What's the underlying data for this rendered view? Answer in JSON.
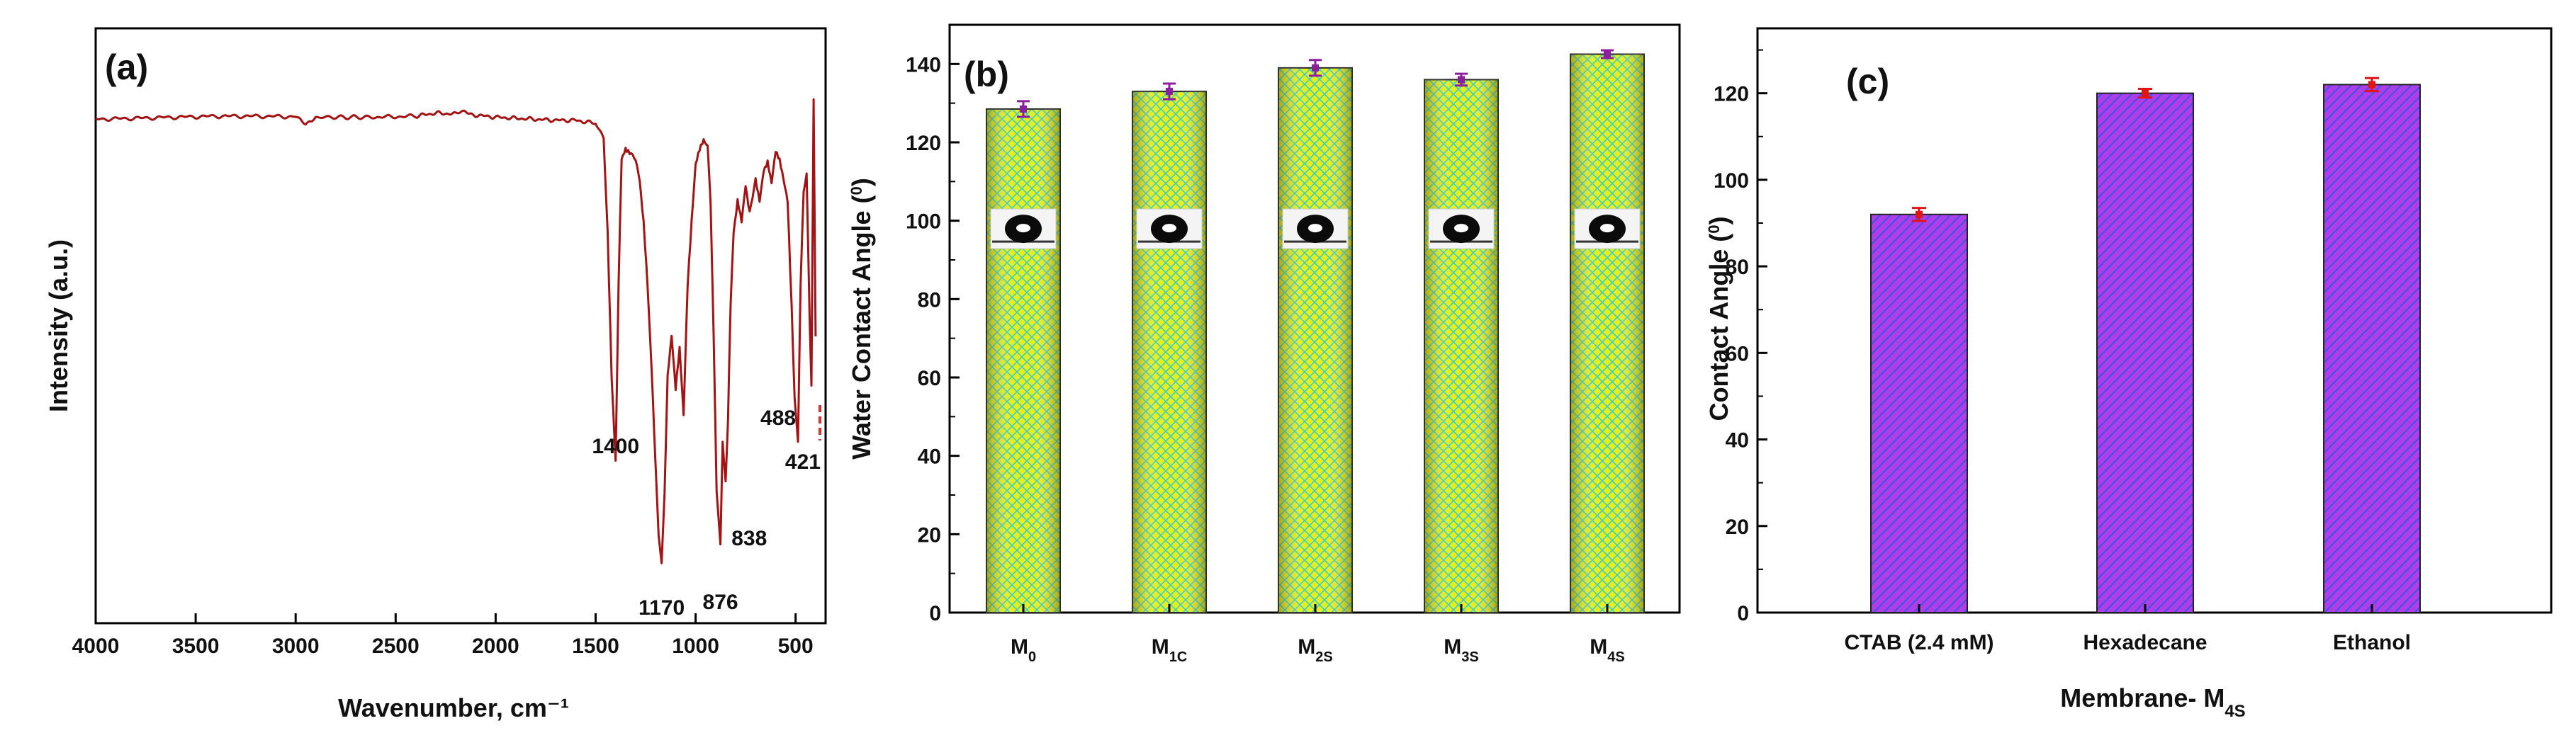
{
  "figure": {
    "panels": [
      "(a)",
      "(b)",
      "(c)"
    ]
  },
  "chart_data": [
    {
      "panel": "(a)",
      "type": "line",
      "xlabel": "Wavenumber, cm⁻¹",
      "ylabel": "Intensity (a.u.)",
      "xlim": [
        4000,
        350
      ],
      "xticks": [
        4000,
        3500,
        3000,
        2500,
        2000,
        1500,
        1000,
        500
      ],
      "grid": false,
      "color": "#a31313",
      "series": [
        {
          "x": [
            4000,
            3800,
            3600,
            3400,
            3200,
            3000,
            2950,
            2900,
            2600,
            2400,
            2300,
            2200,
            2150,
            2100,
            2000,
            1900,
            1800,
            1700,
            1600,
            1500,
            1460,
            1440,
            1420,
            1400,
            1385,
            1370,
            1350,
            1330,
            1300,
            1280,
            1260,
            1240,
            1220,
            1200,
            1185,
            1170,
            1155,
            1140,
            1120,
            1100,
            1080,
            1060,
            1040,
            1020,
            1000,
            980,
            960,
            940,
            925,
            910,
            895,
            876,
            865,
            850,
            838,
            825,
            810,
            790,
            770,
            750,
            730,
            700,
            680,
            660,
            640,
            620,
            600,
            580,
            560,
            540,
            520,
            505,
            488,
            475,
            460,
            445,
            430,
            421,
            410,
            400
          ],
          "y": [
            0.92,
            0.922,
            0.924,
            0.926,
            0.926,
            0.925,
            0.912,
            0.924,
            0.924,
            0.926,
            0.932,
            0.93,
            0.935,
            0.928,
            0.924,
            0.922,
            0.92,
            0.918,
            0.918,
            0.912,
            0.88,
            0.7,
            0.42,
            0.26,
            0.6,
            0.84,
            0.86,
            0.855,
            0.84,
            0.8,
            0.72,
            0.6,
            0.44,
            0.25,
            0.12,
            0.06,
            0.2,
            0.42,
            0.5,
            0.4,
            0.48,
            0.35,
            0.6,
            0.72,
            0.83,
            0.86,
            0.88,
            0.87,
            0.76,
            0.5,
            0.2,
            0.1,
            0.3,
            0.22,
            0.34,
            0.56,
            0.7,
            0.76,
            0.72,
            0.79,
            0.74,
            0.8,
            0.76,
            0.82,
            0.84,
            0.8,
            0.86,
            0.84,
            0.8,
            0.76,
            0.56,
            0.38,
            0.3,
            0.6,
            0.78,
            0.82,
            0.54,
            0.4,
            0.96,
            0.5
          ]
        }
      ],
      "annotations": [
        {
          "text": "1400",
          "x": 1400
        },
        {
          "text": "1170",
          "x": 1170
        },
        {
          "text": "876",
          "x": 876
        },
        {
          "text": "838",
          "x": 838
        },
        {
          "text": "488",
          "x": 488
        },
        {
          "text": "421",
          "x": 421
        }
      ]
    },
    {
      "panel": "(b)",
      "type": "bar",
      "categories": [
        {
          "base": "M",
          "sub": "0"
        },
        {
          "base": "M",
          "sub": "1C"
        },
        {
          "base": "M",
          "sub": "2S"
        },
        {
          "base": "M",
          "sub": "3S"
        },
        {
          "base": "M",
          "sub": "4S"
        }
      ],
      "values": [
        128.5,
        133,
        139,
        136,
        142.5
      ],
      "errors": [
        2,
        2,
        2,
        1.5,
        1
      ],
      "ylabel": "Water Contact Angle (°)",
      "ylabel_base": "Water Contact Angle (",
      "ylabel_sup": "0",
      "ylabel_end": ")",
      "ylim": [
        0,
        150
      ],
      "yticks": [
        0,
        20,
        40,
        60,
        80,
        100,
        120,
        140
      ],
      "bar_fill": "#e6ee1e",
      "bar_pattern": "crosshatch-cyan",
      "error_color": "#8c1ea0",
      "droplet_insets": true
    },
    {
      "panel": "(c)",
      "type": "bar",
      "categories": [
        "CTAB (2.4 mM)",
        "Hexadecane",
        "Ethanol"
      ],
      "values": [
        92,
        120,
        122
      ],
      "errors": [
        1.5,
        1,
        1.5
      ],
      "xlabel": "Membrane- M₄ₛ",
      "xlabel_base": "Membrane- M",
      "xlabel_sub": "4S",
      "ylabel": "Contact Angle (°)",
      "ylabel_base": "Contact Angle (",
      "ylabel_sup": "0",
      "ylabel_end": ")",
      "ylim": [
        0,
        135
      ],
      "yticks": [
        0,
        20,
        40,
        60,
        80,
        100,
        120
      ],
      "bar_fill": "#a040e0",
      "bar_pattern": "diagonal-blue",
      "error_color": "#e01515"
    }
  ]
}
